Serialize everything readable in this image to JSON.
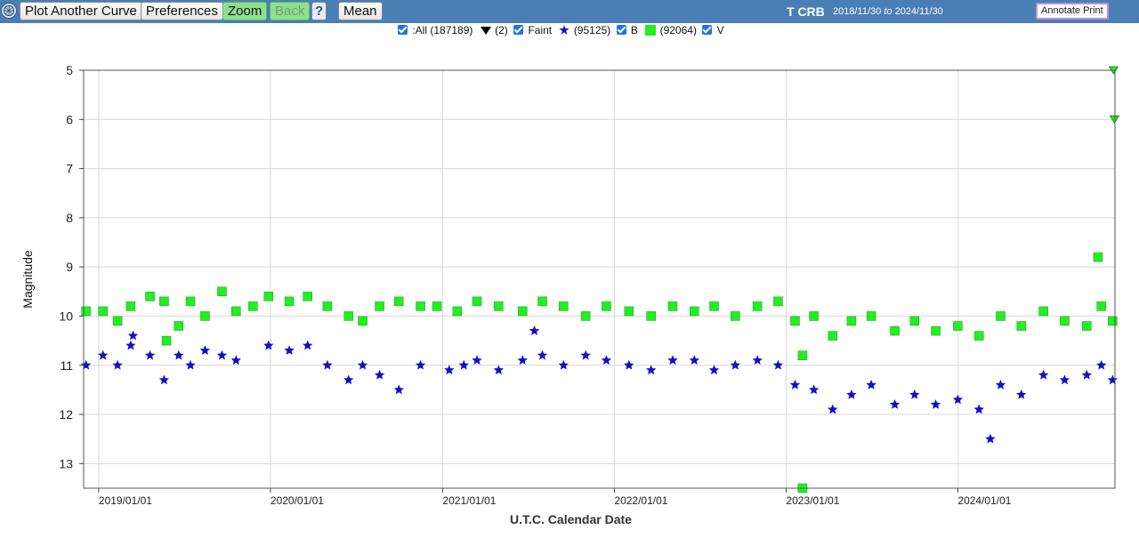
{
  "toolbar": {
    "plot_another": "Plot Another Curve",
    "preferences": "Preferences",
    "zoom": "Zoom",
    "back": "Back",
    "help": "?",
    "mean": "Mean",
    "star": "T CRB",
    "range_from": "2018/11/30",
    "range_to_word": "to",
    "range_to": "2024/11/30",
    "annotate": "Annotate Print"
  },
  "legend": {
    "all": ":All (187189)",
    "faint_count": "(2)",
    "faint": "Faint",
    "b_count": "(95125)",
    "b": "B",
    "v_count": "(92064)",
    "v": "V"
  },
  "colors": {
    "band_b": "#1010cc",
    "band_v": "#22ee22",
    "faint": "#000000",
    "topbar": "#4a7fb5"
  },
  "chart_data": {
    "type": "scatter",
    "title": "",
    "xlabel": "U.T.C. Calendar Date",
    "ylabel": "Magnitude",
    "y_inverted": true,
    "ylim": [
      5,
      13.5
    ],
    "yticks": [
      "5",
      "6",
      "7",
      "8",
      "9",
      "10",
      "11",
      "12",
      "13"
    ],
    "xlim": [
      "2018-11-30",
      "2024-11-30"
    ],
    "xticks": [
      "2019/01/01",
      "2020/01/01",
      "2021/01/01",
      "2022/01/01",
      "2023/01/01",
      "2024/01/01"
    ],
    "grid": true,
    "series": [
      {
        "name": "V",
        "count": 92064,
        "marker": "square",
        "points": [
          [
            "2018-12-05",
            9.9
          ],
          [
            "2019-01-10",
            9.9
          ],
          [
            "2019-02-10",
            10.1
          ],
          [
            "2019-03-10",
            9.8
          ],
          [
            "2019-04-20",
            9.6
          ],
          [
            "2019-05-20",
            9.7
          ],
          [
            "2019-06-20",
            10.2
          ],
          [
            "2019-07-15",
            9.7
          ],
          [
            "2019-08-15",
            10.0
          ],
          [
            "2019-09-20",
            9.5
          ],
          [
            "2019-10-20",
            9.9
          ],
          [
            "2019-11-25",
            9.8
          ],
          [
            "2019-12-28",
            9.6
          ],
          [
            "2020-02-10",
            9.7
          ],
          [
            "2020-03-20",
            9.6
          ],
          [
            "2020-05-01",
            9.8
          ],
          [
            "2020-06-15",
            10.0
          ],
          [
            "2020-07-15",
            10.1
          ],
          [
            "2020-08-20",
            9.8
          ],
          [
            "2020-09-30",
            9.7
          ],
          [
            "2020-11-15",
            9.8
          ],
          [
            "2020-12-20",
            9.8
          ],
          [
            "2021-02-01",
            9.9
          ],
          [
            "2021-03-15",
            9.7
          ],
          [
            "2021-04-30",
            9.8
          ],
          [
            "2021-06-20",
            9.9
          ],
          [
            "2021-08-01",
            9.7
          ],
          [
            "2021-09-15",
            9.8
          ],
          [
            "2021-11-01",
            10.0
          ],
          [
            "2021-12-15",
            9.8
          ],
          [
            "2022-02-01",
            9.9
          ],
          [
            "2022-03-20",
            10.0
          ],
          [
            "2022-05-05",
            9.8
          ],
          [
            "2022-06-20",
            9.9
          ],
          [
            "2022-08-01",
            9.8
          ],
          [
            "2022-09-15",
            10.0
          ],
          [
            "2022-11-01",
            9.8
          ],
          [
            "2022-12-15",
            9.7
          ],
          [
            "2023-01-20",
            10.1
          ],
          [
            "2023-03-01",
            10.0
          ],
          [
            "2023-04-10",
            10.4
          ],
          [
            "2023-05-20",
            10.1
          ],
          [
            "2023-07-01",
            10.0
          ],
          [
            "2023-08-20",
            10.3
          ],
          [
            "2023-10-01",
            10.1
          ],
          [
            "2023-11-15",
            10.3
          ],
          [
            "2024-01-01",
            10.2
          ],
          [
            "2024-02-15",
            10.4
          ],
          [
            "2024-04-01",
            10.0
          ],
          [
            "2024-05-15",
            10.2
          ],
          [
            "2024-07-01",
            9.9
          ],
          [
            "2024-08-15",
            10.1
          ],
          [
            "2024-10-01",
            10.2
          ],
          [
            "2024-11-01",
            9.8
          ],
          [
            "2024-11-25",
            10.1
          ],
          [
            "2023-02-05",
            13.5
          ],
          [
            "2024-10-25",
            8.8
          ],
          [
            "2019-05-25",
            10.5
          ],
          [
            "2023-02-05",
            10.8
          ]
        ]
      },
      {
        "name": "B",
        "count": 95125,
        "marker": "star",
        "points": [
          [
            "2018-12-05",
            11.0
          ],
          [
            "2019-01-10",
            10.8
          ],
          [
            "2019-02-10",
            11.0
          ],
          [
            "2019-03-10",
            10.6
          ],
          [
            "2019-04-20",
            10.8
          ],
          [
            "2019-05-20",
            11.3
          ],
          [
            "2019-06-20",
            10.8
          ],
          [
            "2019-07-15",
            11.0
          ],
          [
            "2019-08-15",
            10.7
          ],
          [
            "2019-09-20",
            10.8
          ],
          [
            "2019-10-20",
            10.9
          ],
          [
            "2019-12-28",
            10.6
          ],
          [
            "2020-02-10",
            10.7
          ],
          [
            "2020-03-20",
            10.6
          ],
          [
            "2020-05-01",
            11.0
          ],
          [
            "2020-06-15",
            11.3
          ],
          [
            "2020-07-15",
            11.0
          ],
          [
            "2020-08-20",
            11.2
          ],
          [
            "2020-09-30",
            11.5
          ],
          [
            "2020-11-15",
            11.0
          ],
          [
            "2021-01-15",
            11.1
          ],
          [
            "2021-02-15",
            11.0
          ],
          [
            "2021-03-15",
            10.9
          ],
          [
            "2021-04-30",
            11.1
          ],
          [
            "2021-06-20",
            10.9
          ],
          [
            "2021-08-01",
            10.8
          ],
          [
            "2021-09-15",
            11.0
          ],
          [
            "2021-11-01",
            10.8
          ],
          [
            "2021-12-15",
            10.9
          ],
          [
            "2022-02-01",
            11.0
          ],
          [
            "2022-03-20",
            11.1
          ],
          [
            "2022-05-05",
            10.9
          ],
          [
            "2022-06-20",
            10.9
          ],
          [
            "2022-08-01",
            11.1
          ],
          [
            "2022-09-15",
            11.0
          ],
          [
            "2022-11-01",
            10.9
          ],
          [
            "2022-12-15",
            11.0
          ],
          [
            "2023-01-20",
            11.4
          ],
          [
            "2023-03-01",
            11.5
          ],
          [
            "2023-04-10",
            11.9
          ],
          [
            "2023-05-20",
            11.6
          ],
          [
            "2023-07-01",
            11.4
          ],
          [
            "2023-08-20",
            11.8
          ],
          [
            "2023-10-01",
            11.6
          ],
          [
            "2023-11-15",
            11.8
          ],
          [
            "2024-01-01",
            11.7
          ],
          [
            "2024-02-15",
            11.9
          ],
          [
            "2024-04-01",
            11.4
          ],
          [
            "2024-05-15",
            11.6
          ],
          [
            "2024-07-01",
            11.2
          ],
          [
            "2024-08-15",
            11.3
          ],
          [
            "2024-10-01",
            11.2
          ],
          [
            "2024-11-01",
            11.0
          ],
          [
            "2024-11-25",
            11.3
          ],
          [
            "2024-03-10",
            12.5
          ],
          [
            "2019-03-15",
            10.4
          ],
          [
            "2021-07-15",
            10.3
          ]
        ]
      },
      {
        "name": "Faint",
        "count": 2,
        "marker": "triangle-down",
        "points": [
          [
            "2024-11-27",
            5.0
          ],
          [
            "2024-11-29",
            6.0
          ]
        ]
      }
    ]
  }
}
